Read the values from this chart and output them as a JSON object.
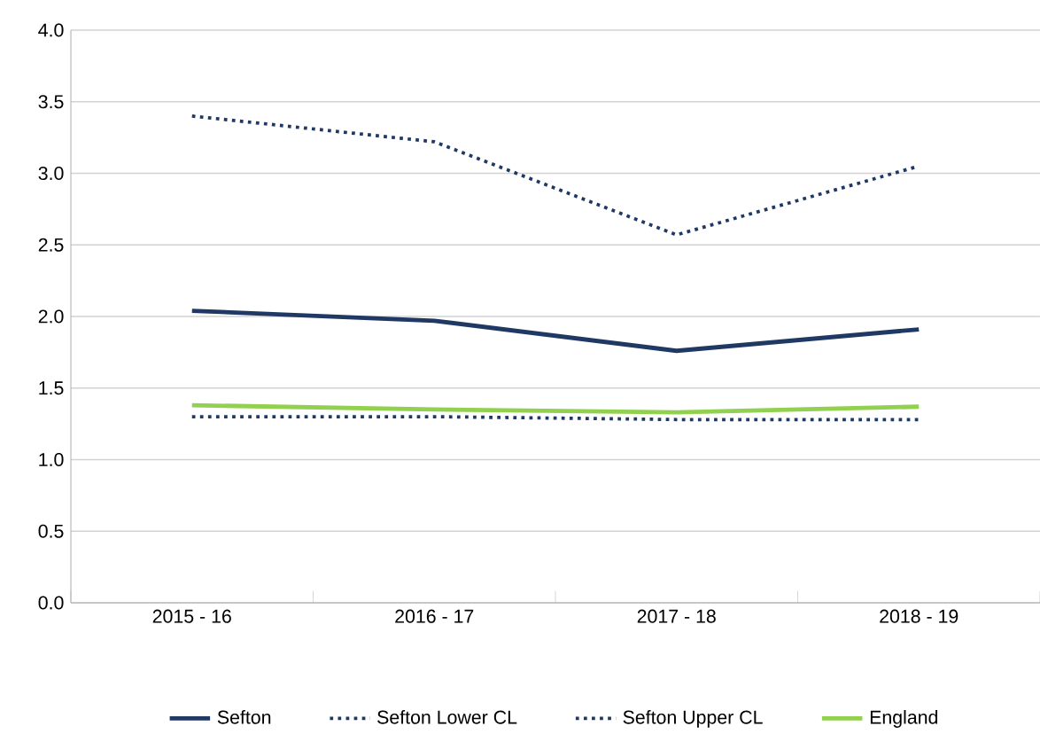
{
  "chart_data": {
    "type": "line",
    "categories": [
      "2015 - 16",
      "2016 - 17",
      "2017 - 18",
      "2018 - 19"
    ],
    "series": [
      {
        "name": "Sefton",
        "color": "#1f3864",
        "values": [
          2.04,
          1.97,
          1.76,
          1.91
        ],
        "line_style": "solid"
      },
      {
        "name": "Sefton Lower CL",
        "color": "#1f3864",
        "values": [
          1.3,
          1.3,
          1.28,
          1.28
        ],
        "line_style": "dotted"
      },
      {
        "name": "Sefton Upper CL",
        "color": "#1f3864",
        "values": [
          3.4,
          3.22,
          2.57,
          3.05
        ],
        "line_style": "dotted"
      },
      {
        "name": "England",
        "color": "#92d050",
        "values": [
          1.38,
          1.35,
          1.33,
          1.37
        ],
        "line_style": "solid"
      }
    ],
    "ylim": [
      0,
      4.0
    ],
    "yticks": [
      {
        "value": 0,
        "label": "0.0"
      },
      {
        "value": 0.5,
        "label": "0.5"
      },
      {
        "value": 1,
        "label": "1.0"
      },
      {
        "value": 1.5,
        "label": "1.5"
      },
      {
        "value": 2,
        "label": "2.0"
      },
      {
        "value": 2.5,
        "label": "2.5"
      },
      {
        "value": 3,
        "label": "3.0"
      },
      {
        "value": 3.5,
        "label": "3.5"
      },
      {
        "value": 4,
        "label": "4.0"
      }
    ],
    "grid": "y",
    "legend": "bottom",
    "marker": "none"
  }
}
